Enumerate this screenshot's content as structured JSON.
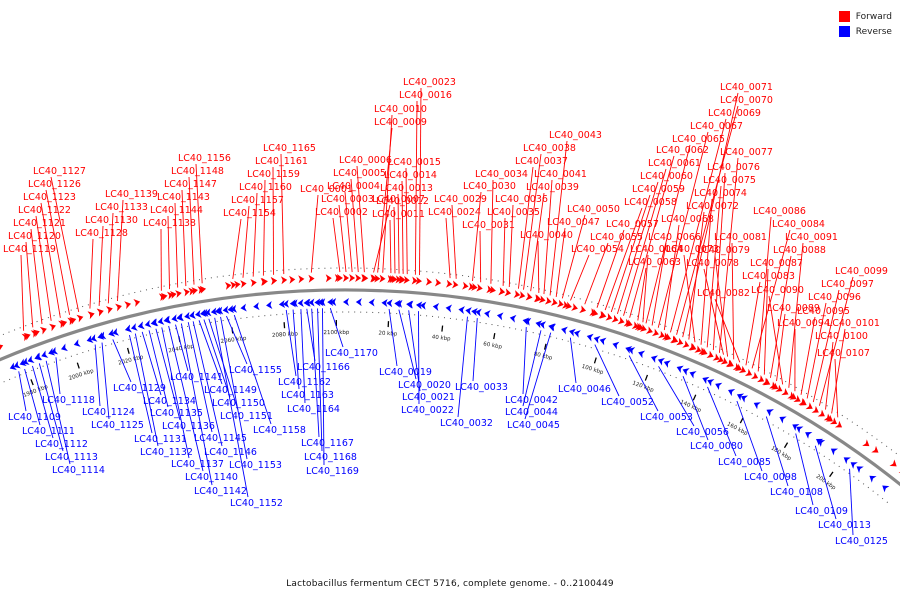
{
  "legend": {
    "forward": {
      "label": "Forward",
      "color": "#ff0000"
    },
    "reverse": {
      "label": "Reverse",
      "color": "#0000ff"
    }
  },
  "caption": "Lactobacillus fermentum CECT 5716, complete genome. - 0..2100449",
  "scale": {
    "total_bp": 2100449,
    "visible_from_kbp": 1980,
    "visible_to_kbp": 220
  },
  "ticks": [
    "1980 kbp",
    "2000 kbp",
    "2020 kbp",
    "2040 kbp",
    "2060 kbp",
    "2080 kbp",
    "2100 kbp",
    "20 kbp",
    "40 kbp",
    "60 kbp",
    "80 kbp",
    "100 kbp",
    "120 kbp",
    "140 kbp",
    "160 kbp",
    "180 kbp",
    "200 kbp"
  ],
  "forward_labels": [
    "LC40_1119",
    "LC40_1120",
    "LC40_1121",
    "LC40_1122",
    "LC40_1123",
    "LC40_1126",
    "LC40_1127",
    "LC40_1128",
    "LC40_1130",
    "LC40_1133",
    "LC40_1139",
    "LC40_1138",
    "LC40_1144",
    "LC40_1143",
    "LC40_1147",
    "LC40_1148",
    "LC40_1156",
    "LC40_1154",
    "LC40_1157",
    "LC40_1160",
    "LC40_1159",
    "LC40_1161",
    "LC40_1165",
    "LC40_0001",
    "LC40_0002",
    "LC40_0003",
    "LC40_0004",
    "LC40_0005",
    "LC40_0006",
    "LC40_0007",
    "LC40_0009",
    "LC40_0010",
    "LC40_0011",
    "LC40_0012",
    "LC40_0013",
    "LC40_0014",
    "LC40_0015",
    "LC40_0016",
    "LC40_0023",
    "LC40_0024",
    "LC40_0029",
    "LC40_0030",
    "LC40_0031",
    "LC40_0034",
    "LC40_0035",
    "LC40_0036",
    "LC40_0037",
    "LC40_0038",
    "LC40_0039",
    "LC40_0040",
    "LC40_0041",
    "LC40_0043",
    "LC40_0047",
    "LC40_0050",
    "LC40_0054",
    "LC40_0055",
    "LC40_0057",
    "LC40_0058",
    "LC40_0059",
    "LC40_0060",
    "LC40_0061",
    "LC40_0062",
    "LC40_0063",
    "LC40_0064",
    "LC40_0065",
    "LC40_0066",
    "LC40_0067",
    "LC40_0068",
    "LC40_0069",
    "LC40_0070",
    "LC40_0071",
    "LC40_0072",
    "LC40_0073",
    "LC40_0074",
    "LC40_0075",
    "LC40_0076",
    "LC40_0077",
    "LC40_0078",
    "LC40_0079",
    "LC40_0081",
    "LC40_0082",
    "LC40_0083",
    "LC40_0084",
    "LC40_0086",
    "LC40_0087",
    "LC40_0088",
    "LC40_0089",
    "LC40_0090",
    "LC40_0091",
    "LC40_0094",
    "LC40_0095",
    "LC40_0096",
    "LC40_0097",
    "LC40_0099",
    "LC40_0100",
    "LC40_0101",
    "LC40_0107"
  ],
  "reverse_labels": [
    "LC40_1109",
    "LC40_1111",
    "LC40_1112",
    "LC40_1113",
    "LC40_1114",
    "LC40_1118",
    "LC40_1124",
    "LC40_1125",
    "LC40_1129",
    "LC40_1131",
    "LC40_1132",
    "LC40_1134",
    "LC40_1135",
    "LC40_1136",
    "LC40_1137",
    "LC40_1140",
    "LC40_1141",
    "LC40_1142",
    "LC40_1145",
    "LC40_1146",
    "LC40_1149",
    "LC40_1150",
    "LC40_1151",
    "LC40_1152",
    "LC40_1153",
    "LC40_1155",
    "LC40_1158",
    "LC40_1162",
    "LC40_1163",
    "LC40_1164",
    "LC40_1166",
    "LC40_1167",
    "LC40_1168",
    "LC40_1169",
    "LC40_1170",
    "LC40_0019",
    "LC40_0020",
    "LC40_0021",
    "LC40_0022",
    "LC40_0032",
    "LC40_0033",
    "LC40_0042",
    "LC40_0044",
    "LC40_0045",
    "LC40_0046",
    "LC40_0052",
    "LC40_0053",
    "LC40_0056",
    "LC40_0080",
    "LC40_0085",
    "LC40_0098",
    "LC40_0108",
    "LC40_0109",
    "LC40_0113",
    "LC40_0125"
  ]
}
